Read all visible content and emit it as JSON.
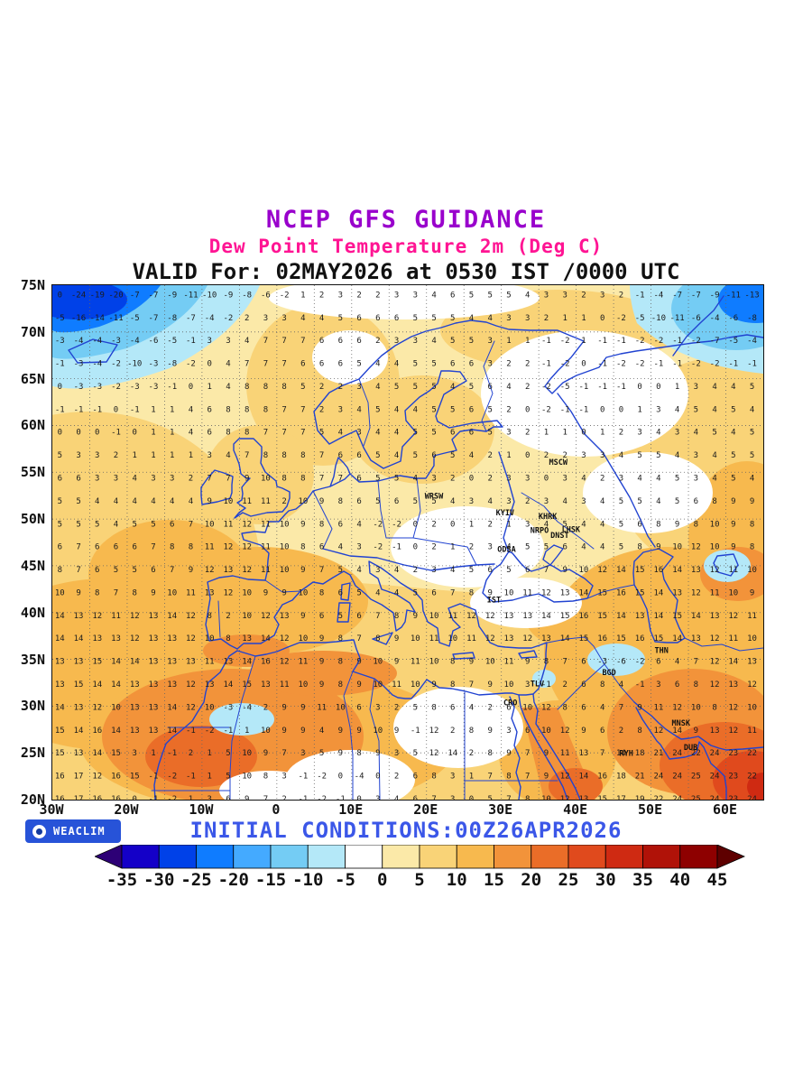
{
  "header": {
    "line1": "NCEP GFS GUIDANCE",
    "line2": "Dew Point Temperature 2m (Deg C)",
    "line3": "VALID For: 02MAY2026 at 0530 IST /0000 UTC"
  },
  "footer": {
    "initial_conditions": "INITIAL CONDITIONS:00Z26APR2026",
    "brand": "WEACLIM"
  },
  "colors": {
    "title": "#9900cc",
    "subtitle": "#ff1493",
    "valid_line": "#111111",
    "initial_conditions": "#3b57e8",
    "coastline": "#2143d1",
    "badge_bg": "#2753d8"
  },
  "map": {
    "lat_labels": [
      {
        "label": "75N",
        "deg": 75
      },
      {
        "label": "70N",
        "deg": 70
      },
      {
        "label": "65N",
        "deg": 65
      },
      {
        "label": "60N",
        "deg": 60
      },
      {
        "label": "55N",
        "deg": 55
      },
      {
        "label": "50N",
        "deg": 50
      },
      {
        "label": "45N",
        "deg": 45
      },
      {
        "label": "40N",
        "deg": 40
      },
      {
        "label": "35N",
        "deg": 35
      },
      {
        "label": "30N",
        "deg": 30
      },
      {
        "label": "25N",
        "deg": 25
      },
      {
        "label": "20N",
        "deg": 20
      }
    ],
    "lon_labels": [
      {
        "label": "30W",
        "deg": -30
      },
      {
        "label": "20W",
        "deg": -20
      },
      {
        "label": "10W",
        "deg": -10
      },
      {
        "label": "0",
        "deg": 0
      },
      {
        "label": "10E",
        "deg": 10
      },
      {
        "label": "20E",
        "deg": 20
      },
      {
        "label": "30E",
        "deg": 30
      },
      {
        "label": "40E",
        "deg": 40
      },
      {
        "label": "50E",
        "deg": 50
      },
      {
        "label": "60E",
        "deg": 60
      }
    ],
    "cities": [
      {
        "name": "MSCW",
        "lon": 37.6,
        "lat": 55.8
      },
      {
        "name": "WRSW",
        "lon": 21.0,
        "lat": 52.2
      },
      {
        "name": "KYIV",
        "lon": 30.5,
        "lat": 50.4
      },
      {
        "name": "KHRK",
        "lon": 36.2,
        "lat": 50.0
      },
      {
        "name": "LHSK",
        "lon": 39.3,
        "lat": 48.6
      },
      {
        "name": "DNST",
        "lon": 37.8,
        "lat": 48.0
      },
      {
        "name": "NRPO",
        "lon": 35.1,
        "lat": 48.5
      },
      {
        "name": "ODSA",
        "lon": 30.7,
        "lat": 46.5
      },
      {
        "name": "IST",
        "lon": 29.0,
        "lat": 41.1
      },
      {
        "name": "THN",
        "lon": 51.4,
        "lat": 35.7
      },
      {
        "name": "BGD",
        "lon": 44.4,
        "lat": 33.3
      },
      {
        "name": "TLV",
        "lon": 34.8,
        "lat": 32.1
      },
      {
        "name": "CRO",
        "lon": 31.2,
        "lat": 30.1
      },
      {
        "name": "MNSK",
        "lon": 54.0,
        "lat": 27.9
      },
      {
        "name": "RYH",
        "lon": 46.7,
        "lat": 24.7
      },
      {
        "name": "DUB",
        "lon": 55.3,
        "lat": 25.3
      }
    ],
    "grid_values": {
      "lat_start": 74,
      "lat_step": 2.45,
      "lon_start": -29,
      "lon_step": 2.5,
      "rows": [
        "0 -24 -19 -20 -7 -7 -9 -11 -10 -9 -8 -6 -2 1 2 3 2 2 3 3 4 6 5 5 5 4 3 3 2 3 2 -1 -4 -7 -7 -9 -11 -13",
        "-5 -16 -14 -11 -5 -7 -8 -7 -4 -2 2 3 3 4 4 5 6 6 6 5 5 5 4 4 3 3 2 1 1 0 -2 -5 -10 -11 -6 -4 -6 -8",
        "-3 -4 -4 -3 -4 -6 -5 -1 3 3 4 7 7 7 6 6 6 2 3 3 4 5 5 3 1 1 -1 -2 1 -1 -1 -2 -2 -1 -2 -7 -5 -4",
        "-1 -3 -4 -2 -10 -3 -8 -2 0 4 7 7 7 6 6 6 5 4 4 5 5 6 6 3 2 2 -1 -2 0 -1 -2 -2 -1 -1 -2 -2 -1 -1",
        "0 -3 -3 -2 -3 -3 -1 0 1 4 8 8 8 5 2 2 3 4 5 5 5 4 5 6 4 2 -2 -5 -1 -1 -1 0 0 1 3 4 4 5",
        "-1 -1 -1 0 -1 1 1 4 6 8 8 8 7 7 2 3 4 5 4 4 5 5 6 5 2 0 -2 -1 -1 0 0 1 3 4 5 4 5 4",
        "0 0 0 -1 0 1 1 4 6 8 8 7 7 7 5 4 3 4 4 5 5 6 6 5 3 2 1 1 0 1 2 3 4 3 4 5 4 5",
        "5 3 3 2 1 1 1 1 3 4 7 8 8 8 7 6 6 5 4 5 6 5 4 2 1 0 2 2 3 3 4 5 5 4 3 4 5 5",
        "6 6 3 3 4 3 3 2 7 7 9 10 8 8 7 7 6 5 5 4 3 2 0 2 3 3 0 3 4 2 3 4 4 5 3 4 5 4",
        "5 5 4 4 4 4 4 4 9 10 11 11 2 10 9 8 6 5 6 5 5 4 3 4 3 2 3 4 3 4 5 5 4 5 6 8 9 9",
        "5 5 5 4 5 5 6 7 10 11 12 11 10 9 8 6 4 -2 -2 0 2 0 1 2 1 3 4 5 4 4 5 6 8 9 8 10 9 8",
        "6 7 6 6 6 7 8 8 11 12 12 11 10 8 6 4 3 -2 -1 0 2 1 2 3 4 5 5 6 4 4 5 8 9 10 12 10 9 8",
        "8 7 6 5 5 6 7 9 12 13 12 11 10 9 7 5 4 3 4 2 3 4 5 6 5 6 7 9 10 12 14 15 16 14 13 12 11 10",
        "10 9 8 7 8 9 10 11 13 12 10 9 9 10 8 6 5 4 4 5 6 7 8 9 10 11 12 13 14 15 16 15 14 13 12 11 10 9",
        "14 13 12 11 12 13 14 12 8 2 10 12 13 9 6 5 6 7 8 9 10 11 12 12 13 13 14 15 16 15 14 13 14 15 14 13 12 11",
        "14 14 13 13 12 13 13 12 10 8 13 14 12 10 9 8 7 8 9 10 11 10 11 12 13 12 13 14 15 16 15 16 15 14 13 12 11 10",
        "13 13 15 14 14 13 13 13 11 13 14 16 12 11 9 8 9 10 9 11 10 8 9 10 11 9 8 7 6 -3 -6 -2 6 4 7 12 14 13",
        "13 15 14 14 13 13 13 12 13 14 15 13 11 10 9 8 9 10 11 10 9 8 7 9 10 3 -1 2 6 8 4 -1 3 6 8 12 13 12",
        "14 13 12 10 13 13 14 12 10 -3 -4 2 9 9 11 10 6 3 2 5 8 6 4 2 6 10 12 8 6 4 7 9 11 12 10 8 12 10",
        "15 14 16 14 13 13 14 -1 -2 -1 1 10 9 9 4 9 9 10 9 -1 12 2 8 9 3 6 10 12 9 6 2 8 12 14 9 13 12 11",
        "15 13 14 15 3 1 -1 2 1 5 10 9 7 3 5 9 8 9 3 5 12 14 2 8 9 7 9 11 13 7 14 18 21 24 22 24 23 22",
        "16 17 12 16 15 -1 -2 -1 1 5 10 8 3 -1 -2 0 -4 0 2 6 8 3 1 7 8 7 9 12 14 16 18 21 24 24 25 24 23 22",
        "16 17 16 16 0 -1 -2 1 3 6 9 7 2 -1 -2 -1 0 3 4 6 7 3 0 5 7 8 10 12 13 15 17 19 22 24 25 24 23 24"
      ]
    }
  },
  "colorbar": {
    "tick_labels": [
      "-35",
      "-30",
      "-25",
      "-20",
      "-15",
      "-10",
      "-5",
      "0",
      "5",
      "10",
      "15",
      "20",
      "25",
      "30",
      "35",
      "40",
      "45"
    ],
    "segment_colors": [
      "#1400c8",
      "#0041e8",
      "#0f7cff",
      "#44aaff",
      "#74ccf4",
      "#b4e8f8",
      "#ffffff",
      "#fbe9a8",
      "#f9d377",
      "#f7b94e",
      "#f2933a",
      "#ea6d28",
      "#e04a1d",
      "#cf2a12",
      "#b01208",
      "#8e0000"
    ],
    "arrow_left_color": "#2d0076",
    "arrow_right_color": "#5e0000"
  }
}
